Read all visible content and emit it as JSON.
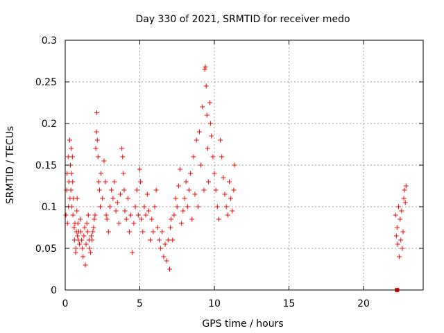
{
  "chart_data": {
    "type": "scatter",
    "title": "Day 330 of 2021, SRMTID for receiver medo",
    "xlabel": "GPS time / hours",
    "ylabel": "SRMTID / TECUs",
    "xlim": [
      0,
      24
    ],
    "ylim": [
      0,
      0.3
    ],
    "x_ticks": [
      0,
      5,
      10,
      15,
      20
    ],
    "x_tick_labels": [
      "0",
      "5",
      "10",
      "15",
      "20"
    ],
    "y_ticks": [
      0,
      0.05,
      0.1,
      0.15,
      0.2,
      0.25,
      0.3
    ],
    "y_tick_labels": [
      "0",
      "0.05",
      "0.1",
      "0.15",
      "0.2",
      "0.25",
      "0.3"
    ],
    "grid": true,
    "legend": "none",
    "marker": "+",
    "color": "#ff0000",
    "series": [
      {
        "points": [
          [
            0.05,
            0.09
          ],
          [
            0.1,
            0.12
          ],
          [
            0.12,
            0.14
          ],
          [
            0.15,
            0.08
          ],
          [
            0.2,
            0.16
          ],
          [
            0.22,
            0.1
          ],
          [
            0.25,
            0.13
          ],
          [
            0.3,
            0.18
          ],
          [
            0.32,
            0.11
          ],
          [
            0.35,
            0.15
          ],
          [
            0.38,
            0.12
          ],
          [
            0.4,
            0.17
          ],
          [
            0.42,
            0.14
          ],
          [
            0.45,
            0.1
          ],
          [
            0.48,
            0.16
          ],
          [
            0.5,
            0.13
          ],
          [
            0.52,
            0.09
          ],
          [
            0.55,
            0.11
          ],
          [
            0.6,
            0.075
          ],
          [
            0.62,
            0.06
          ],
          [
            0.65,
            0.08
          ],
          [
            0.7,
            0.045
          ],
          [
            0.72,
            0.05
          ],
          [
            0.75,
            0.07
          ],
          [
            0.78,
            0.095
          ],
          [
            0.8,
            0.11
          ],
          [
            0.82,
            0.065
          ],
          [
            0.85,
            0.08
          ],
          [
            0.88,
            0.06
          ],
          [
            0.9,
            0.07
          ],
          [
            0.95,
            0.055
          ],
          [
            1.0,
            0.085
          ],
          [
            1.05,
            0.07
          ],
          [
            1.1,
            0.06
          ],
          [
            1.15,
            0.05
          ],
          [
            1.2,
            0.04
          ],
          [
            1.25,
            0.065
          ],
          [
            1.3,
            0.075
          ],
          [
            1.35,
            0.03
          ],
          [
            1.4,
            0.055
          ],
          [
            1.45,
            0.08
          ],
          [
            1.5,
            0.07
          ],
          [
            1.55,
            0.09
          ],
          [
            1.6,
            0.06
          ],
          [
            1.65,
            0.05
          ],
          [
            1.7,
            0.045
          ],
          [
            1.75,
            0.065
          ],
          [
            1.8,
            0.06
          ],
          [
            1.85,
            0.07
          ],
          [
            1.9,
            0.075
          ],
          [
            1.95,
            0.085
          ],
          [
            2.0,
            0.09
          ],
          [
            2.05,
            0.17
          ],
          [
            2.1,
            0.19
          ],
          [
            2.12,
            0.213
          ],
          [
            2.15,
            0.18
          ],
          [
            2.2,
            0.16
          ],
          [
            2.25,
            0.13
          ],
          [
            2.3,
            0.12
          ],
          [
            2.35,
            0.1
          ],
          [
            2.4,
            0.14
          ],
          [
            2.5,
            0.11
          ],
          [
            2.6,
            0.155
          ],
          [
            2.7,
            0.13
          ],
          [
            2.75,
            0.09
          ],
          [
            2.8,
            0.085
          ],
          [
            2.9,
            0.07
          ],
          [
            3.0,
            0.1
          ],
          [
            3.1,
            0.12
          ],
          [
            3.2,
            0.11
          ],
          [
            3.3,
            0.13
          ],
          [
            3.4,
            0.095
          ],
          [
            3.5,
            0.105
          ],
          [
            3.6,
            0.08
          ],
          [
            3.7,
            0.115
          ],
          [
            3.8,
            0.17
          ],
          [
            3.85,
            0.16
          ],
          [
            3.9,
            0.14
          ],
          [
            3.95,
            0.12
          ],
          [
            4.0,
            0.095
          ],
          [
            4.1,
            0.085
          ],
          [
            4.2,
            0.11
          ],
          [
            4.3,
            0.07
          ],
          [
            4.4,
            0.09
          ],
          [
            4.5,
            0.045
          ],
          [
            4.6,
            0.08
          ],
          [
            4.7,
            0.1
          ],
          [
            4.8,
            0.12
          ],
          [
            4.9,
            0.09
          ],
          [
            5.0,
            0.145
          ],
          [
            5.05,
            0.13
          ],
          [
            5.1,
            0.085
          ],
          [
            5.2,
            0.07
          ],
          [
            5.3,
            0.1
          ],
          [
            5.4,
            0.09
          ],
          [
            5.5,
            0.115
          ],
          [
            5.6,
            0.095
          ],
          [
            5.7,
            0.06
          ],
          [
            5.8,
            0.085
          ],
          [
            5.9,
            0.07
          ],
          [
            6.0,
            0.1
          ],
          [
            6.1,
            0.12
          ],
          [
            6.2,
            0.075
          ],
          [
            6.3,
            0.06
          ],
          [
            6.4,
            0.05
          ],
          [
            6.5,
            0.07
          ],
          [
            6.6,
            0.04
          ],
          [
            6.7,
            0.055
          ],
          [
            6.8,
            0.035
          ],
          [
            6.9,
            0.06
          ],
          [
            7.0,
            0.025
          ],
          [
            7.05,
            0.075
          ],
          [
            7.1,
            0.085
          ],
          [
            7.2,
            0.06
          ],
          [
            7.3,
            0.09
          ],
          [
            7.4,
            0.11
          ],
          [
            7.5,
            0.1
          ],
          [
            7.6,
            0.125
          ],
          [
            7.7,
            0.145
          ],
          [
            7.8,
            0.08
          ],
          [
            7.9,
            0.095
          ],
          [
            8.0,
            0.11
          ],
          [
            8.1,
            0.13
          ],
          [
            8.2,
            0.1
          ],
          [
            8.3,
            0.12
          ],
          [
            8.4,
            0.14
          ],
          [
            8.5,
            0.085
          ],
          [
            8.6,
            0.16
          ],
          [
            8.7,
            0.115
          ],
          [
            8.8,
            0.18
          ],
          [
            8.9,
            0.1
          ],
          [
            9.0,
            0.19
          ],
          [
            9.1,
            0.15
          ],
          [
            9.2,
            0.22
          ],
          [
            9.3,
            0.12
          ],
          [
            9.35,
            0.265
          ],
          [
            9.4,
            0.268
          ],
          [
            9.45,
            0.245
          ],
          [
            9.5,
            0.21
          ],
          [
            9.55,
            0.17
          ],
          [
            9.6,
            0.13
          ],
          [
            9.7,
            0.225
          ],
          [
            9.75,
            0.2
          ],
          [
            9.8,
            0.185
          ],
          [
            9.9,
            0.16
          ],
          [
            10.0,
            0.14
          ],
          [
            10.1,
            0.12
          ],
          [
            10.2,
            0.1
          ],
          [
            10.3,
            0.085
          ],
          [
            10.4,
            0.18
          ],
          [
            10.5,
            0.16
          ],
          [
            10.6,
            0.135
          ],
          [
            10.7,
            0.115
          ],
          [
            10.8,
            0.1
          ],
          [
            10.9,
            0.09
          ],
          [
            11.0,
            0.13
          ],
          [
            11.1,
            0.11
          ],
          [
            11.2,
            0.095
          ],
          [
            11.3,
            0.12
          ],
          [
            11.35,
            0.15
          ],
          [
            22.15,
            0.09
          ],
          [
            22.2,
            0.065
          ],
          [
            22.25,
            0.075
          ],
          [
            22.3,
            0.055
          ],
          [
            22.35,
            0.1
          ],
          [
            22.4,
            0.04
          ],
          [
            22.45,
            0.085
          ],
          [
            22.5,
            0.06
          ],
          [
            22.55,
            0.095
          ],
          [
            22.6,
            0.05
          ],
          [
            22.65,
            0.07
          ],
          [
            22.7,
            0.11
          ],
          [
            22.75,
            0.12
          ],
          [
            22.8,
            0.105
          ],
          [
            22.85,
            0.125
          ]
        ]
      },
      {
        "marker": "square",
        "points": [
          [
            22.25,
            0.0
          ]
        ]
      }
    ]
  }
}
